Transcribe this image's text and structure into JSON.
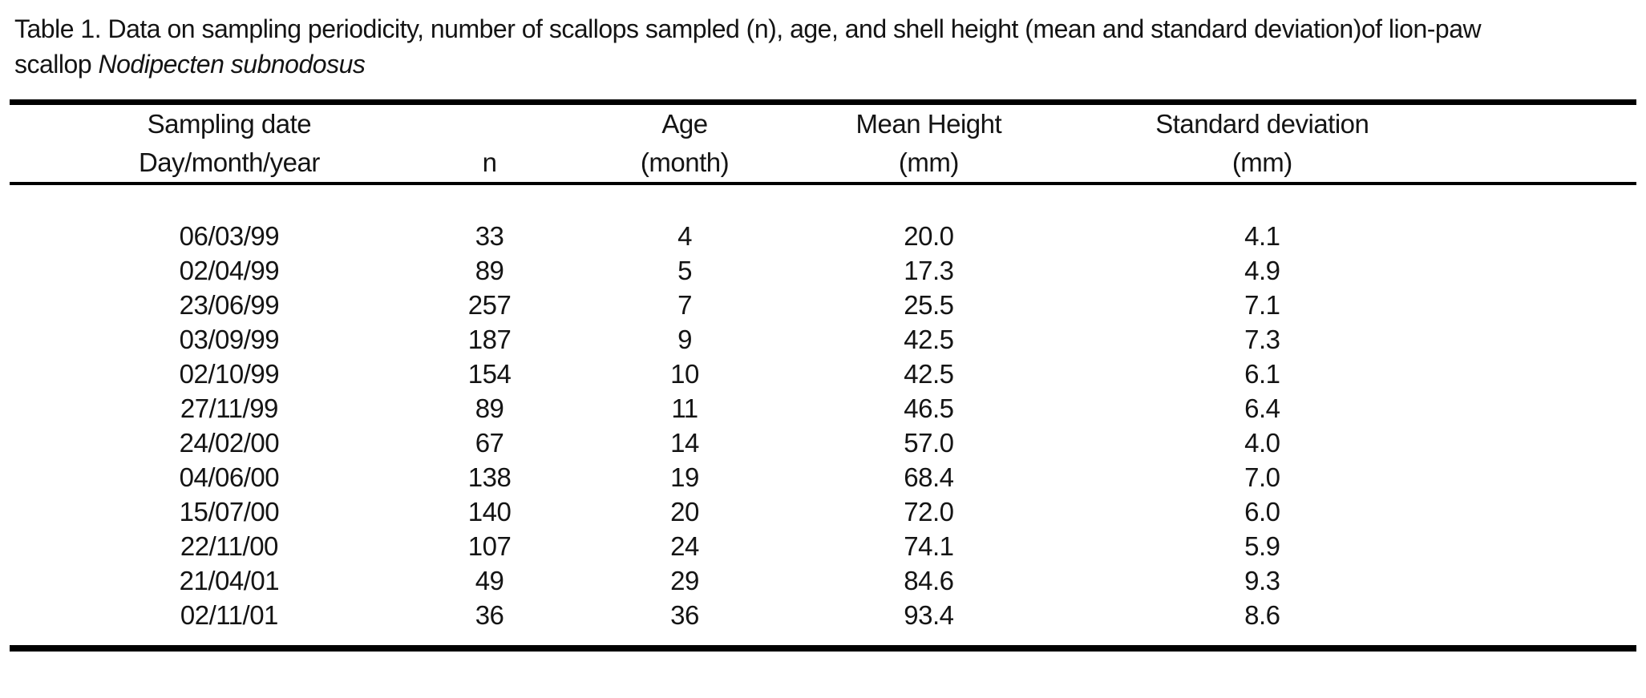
{
  "caption": {
    "line1": "Table 1. Data on sampling periodicity, number of scallops sampled (n), age, and shell height (mean and standard deviation)of lion-paw",
    "line2_prefix": "scallop",
    "species": "Nodipecten subnodosus"
  },
  "table": {
    "columns": [
      {
        "id": "sampling-date",
        "line1": "Sampling date",
        "line2": "Day/month/year"
      },
      {
        "id": "n",
        "line1": "",
        "line2": "n"
      },
      {
        "id": "age",
        "line1": "Age",
        "line2": "(month)"
      },
      {
        "id": "mean-height",
        "line1": "Mean Height",
        "line2": "(mm)"
      },
      {
        "id": "std-deviation",
        "line1": "Standard deviation",
        "line2": "(mm)"
      }
    ],
    "rows": [
      [
        "06/03/99",
        "33",
        "4",
        "20.0",
        "4.1"
      ],
      [
        "02/04/99",
        "89",
        "5",
        "17.3",
        "4.9"
      ],
      [
        "23/06/99",
        "257",
        "7",
        "25.5",
        "7.1"
      ],
      [
        "03/09/99",
        "187",
        "9",
        "42.5",
        "7.3"
      ],
      [
        "02/10/99",
        "154",
        "10",
        "42.5",
        "6.1"
      ],
      [
        "27/11/99",
        "89",
        "11",
        "46.5",
        "6.4"
      ],
      [
        "24/02/00",
        "67",
        "14",
        "57.0",
        "4.0"
      ],
      [
        "04/06/00",
        "138",
        "19",
        "68.4",
        "7.0"
      ],
      [
        "15/07/00",
        "140",
        "20",
        "72.0",
        "6.0"
      ],
      [
        "22/11/00",
        "107",
        "24",
        "74.1",
        "5.9"
      ],
      [
        "21/04/01",
        "49",
        "29",
        "84.6",
        "9.3"
      ],
      [
        "02/11/01",
        "36",
        "36",
        "93.4",
        "8.6"
      ]
    ]
  },
  "colors": {
    "background": "#ffffff",
    "text": "#141414",
    "rule": "#000000"
  }
}
